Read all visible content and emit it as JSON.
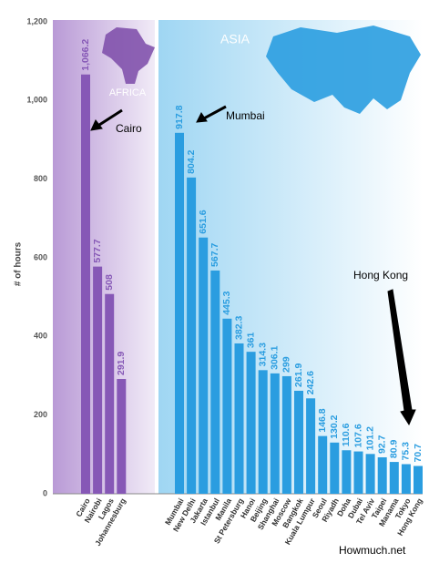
{
  "chart_data": {
    "type": "bar",
    "y_label": "# of hours",
    "ylim": [
      0,
      1200
    ],
    "yticks": [
      0,
      200,
      400,
      600,
      800,
      {
        "value": 1000,
        "label": "1,000"
      },
      {
        "value": 1200,
        "label": "1,200"
      }
    ],
    "groups": [
      {
        "name": "AFRICA",
        "color": "#8658b6",
        "categories": [
          "Cairo",
          "Nairobi",
          "Lagos",
          "Johannesburg"
        ],
        "values": [
          1066.2,
          577.7,
          508,
          291.9
        ],
        "value_labels": [
          "1,066.2",
          "577.7",
          "508",
          "291.9"
        ]
      },
      {
        "name": "ASIA",
        "color": "#2a9de0",
        "categories": [
          "Mumbai",
          "New Delhi",
          "Jakarta",
          "Istanbul",
          "Manila",
          "St Petersburg",
          "Hanoi",
          "Beijing",
          "Shanghai",
          "Moscow",
          "Bangkok",
          "Kuala Lumpur",
          "Seoul",
          "Riyadh",
          "Doha",
          "Dubai",
          "Tel Aviv",
          "Taipei",
          "Manama",
          "Tokyo",
          "Hong Kong"
        ],
        "values": [
          917.8,
          804.2,
          651.6,
          567.7,
          445.3,
          382.3,
          361,
          314.3,
          306.1,
          299,
          261.9,
          242.6,
          146.8,
          130.2,
          110.6,
          107.6,
          101.2,
          92.7,
          80.9,
          75.3,
          70.7
        ]
      }
    ],
    "annotations": [
      "Cairo",
      "Mumbai",
      "Hong Kong"
    ],
    "source": "Howmuch.net"
  }
}
